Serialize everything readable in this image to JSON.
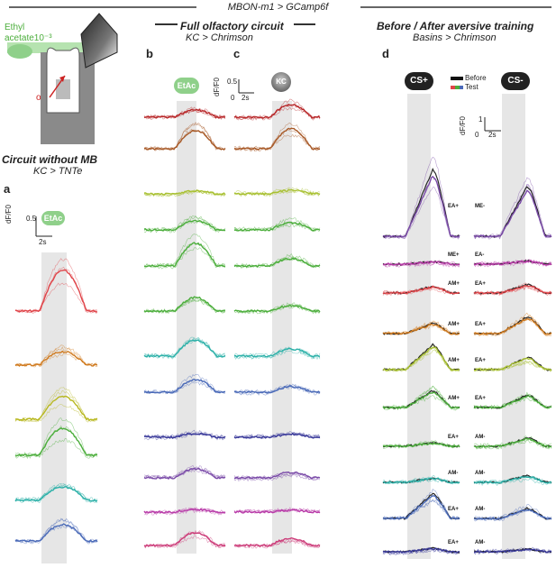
{
  "title": "MBON-m1 > GCamp6f",
  "inset": {
    "odor_label_1": "Ethyl",
    "odor_label_2": "acetate10⁻³",
    "activation_label_1": "optogenetic",
    "activation_label_2": "activation"
  },
  "panel_a": {
    "letter": "a",
    "header": "Circuit without MB",
    "genotype": "KC > TNTe",
    "badge": "EtAc",
    "scale_y": "0.5",
    "scale_x": "2s",
    "ylabel": "dF/F0"
  },
  "panel_b": {
    "letter": "b",
    "badge": "EtAc",
    "scale_y": "0.5",
    "scale_x_0": "0",
    "scale_x": "2s",
    "ylabel": "dF/F0"
  },
  "panel_c": {
    "letter": "c",
    "badge": "KC"
  },
  "panel_bc_header": "Full olfactory circuit",
  "panel_bc_genotype": "KC > Chrimson",
  "panel_d": {
    "letter": "d",
    "header": "Before / After aversive training",
    "genotype": "Basins > Chrimson",
    "cs_plus": "CS+",
    "cs_minus": "CS-",
    "legend_before": "Before",
    "legend_test": "Test",
    "scale_y": "1",
    "scale_x_0": "0",
    "scale_x": "2s",
    "ylabel": "dF/F0",
    "left_conditions": [
      "EA+",
      "ME+",
      "AM+",
      "AM+",
      "AM+",
      "AM+",
      "EA+",
      "AM-",
      "EA+",
      "EA+"
    ],
    "right_conditions": [
      "ME-",
      "EA-",
      "EA+",
      "EA+",
      "EA+",
      "EA+",
      "AM-",
      "AM-",
      "AM-",
      "AM-"
    ]
  },
  "colors": {
    "red": "#e0454a",
    "orange": "#d07a1e",
    "olive": "#b8b820",
    "green": "#4cae3c",
    "teal": "#2bb0a8",
    "blue": "#4a6ab8",
    "indigo": "#3a3a9a",
    "purple": "#7a4aa8",
    "magenta": "#b83aa8",
    "pink": "#cc3a78",
    "darkred": "#b8282a",
    "brown": "#a85a28",
    "yellowgreen": "#a8c030",
    "odor_green": "#8fd08a",
    "stim_gray": "#e6e6e6"
  }
}
